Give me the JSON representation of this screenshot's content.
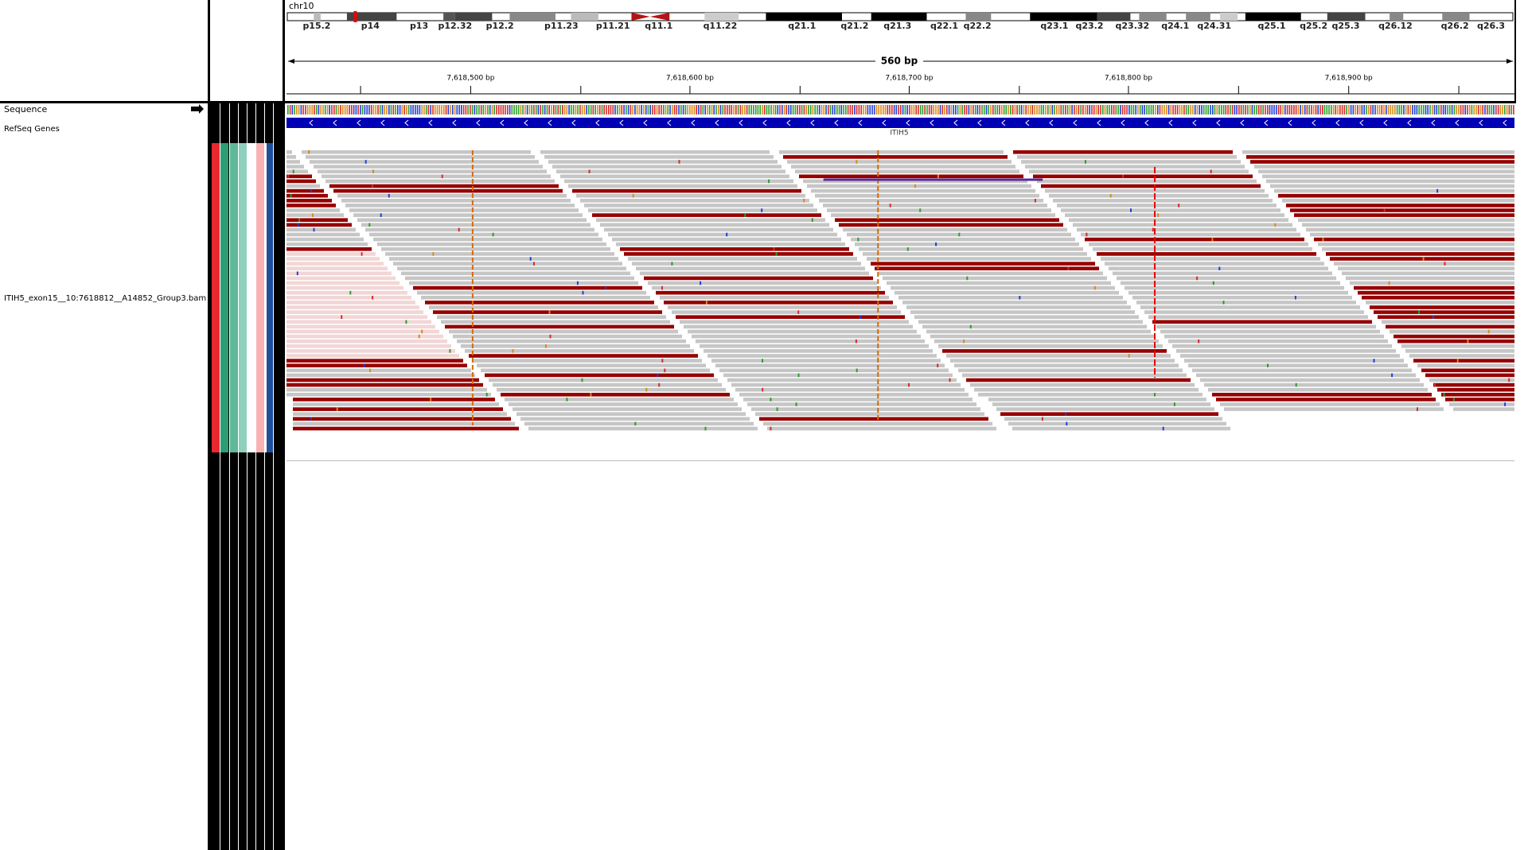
{
  "header": {
    "chromosome": "chr10",
    "bands": [
      "p15.2",
      "p14",
      "p13",
      "p12.32",
      "p12.2",
      "p11.23",
      "p11.21",
      "q11.1",
      "q11.22",
      "q21.1",
      "q21.2",
      "q21.3",
      "q22.1",
      "q22.2",
      "q23.1",
      "q23.2",
      "q23.32",
      "q24.1",
      "q24.31",
      "q25.1",
      "q25.2",
      "q25.3",
      "q26.12",
      "q26.2",
      "q26.3"
    ],
    "span": "560 bp",
    "ticks": [
      "7,618,500 bp",
      "7,618,600 bp",
      "7,618,700 bp",
      "7,618,800 bp",
      "7,618,900 bp"
    ]
  },
  "tracks": {
    "sequence": "Sequence",
    "refseq": "RefSeq Genes",
    "gene": "ITIH5",
    "alignment": "ITIH5_exon15__10:7618812__A14852_Group3.bam"
  }
}
